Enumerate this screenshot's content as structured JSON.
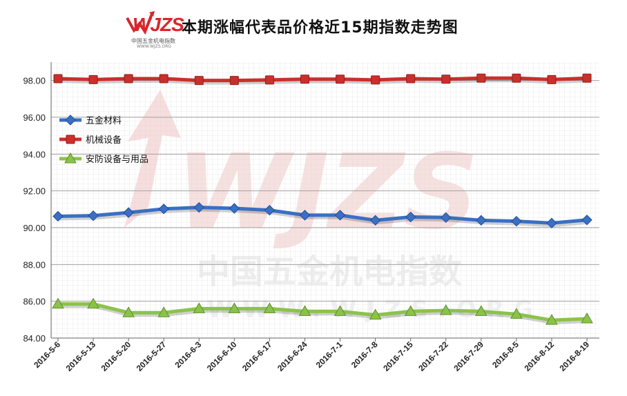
{
  "header": {
    "logo_text": "WJZS",
    "logo_subtitle": "中国五金机电指数",
    "logo_url": "WWW.WJZS.ORG",
    "title": "本期涨幅代表品价格近15期指数走势图"
  },
  "watermark": {
    "logo_text": "WJZS",
    "cn_text": "中国五金机电指数",
    "url_text": "WWW.WJZS.ORG"
  },
  "chart_data": {
    "type": "line",
    "title": "本期涨幅代表品价格近15期指数走势图",
    "xlabel": "",
    "ylabel": "",
    "ylim": [
      84,
      99
    ],
    "yticks": [
      84,
      86,
      88,
      90,
      92,
      94,
      96,
      98
    ],
    "ytick_labels": [
      "84.00",
      "86.00",
      "88.00",
      "90.00",
      "92.00",
      "94.00",
      "96.00",
      "98.00"
    ],
    "grid": true,
    "legend_position": "upper-left",
    "categories": [
      "2016-5-6",
      "2016-5-13",
      "2016-5-20",
      "2016-5-27",
      "2016-6-3",
      "2016-6-10",
      "2016-6-17",
      "2016-6-24",
      "2016-7-1",
      "2016-7-8",
      "2016-7-15",
      "2016-7-22",
      "2016-7-29",
      "2016-8-5",
      "2016-8-12",
      "2016-8-19"
    ],
    "series": [
      {
        "name": "五金材料",
        "color": "#3a6fc4",
        "marker": "diamond",
        "values": [
          90.62,
          90.65,
          90.82,
          91.02,
          91.1,
          91.05,
          90.95,
          90.68,
          90.68,
          90.4,
          90.58,
          90.55,
          90.4,
          90.35,
          90.25,
          90.42
        ]
      },
      {
        "name": "机械设备",
        "color": "#c9302c",
        "marker": "square",
        "values": [
          98.1,
          98.05,
          98.1,
          98.1,
          98.0,
          98.0,
          98.03,
          98.07,
          98.07,
          98.03,
          98.1,
          98.07,
          98.13,
          98.13,
          98.05,
          98.13
        ]
      },
      {
        "name": "安防设备与用品",
        "color": "#8bc34a",
        "marker": "triangle",
        "values": [
          85.85,
          85.85,
          85.38,
          85.38,
          85.6,
          85.6,
          85.6,
          85.45,
          85.45,
          85.25,
          85.45,
          85.5,
          85.45,
          85.3,
          84.97,
          85.05
        ]
      }
    ]
  }
}
